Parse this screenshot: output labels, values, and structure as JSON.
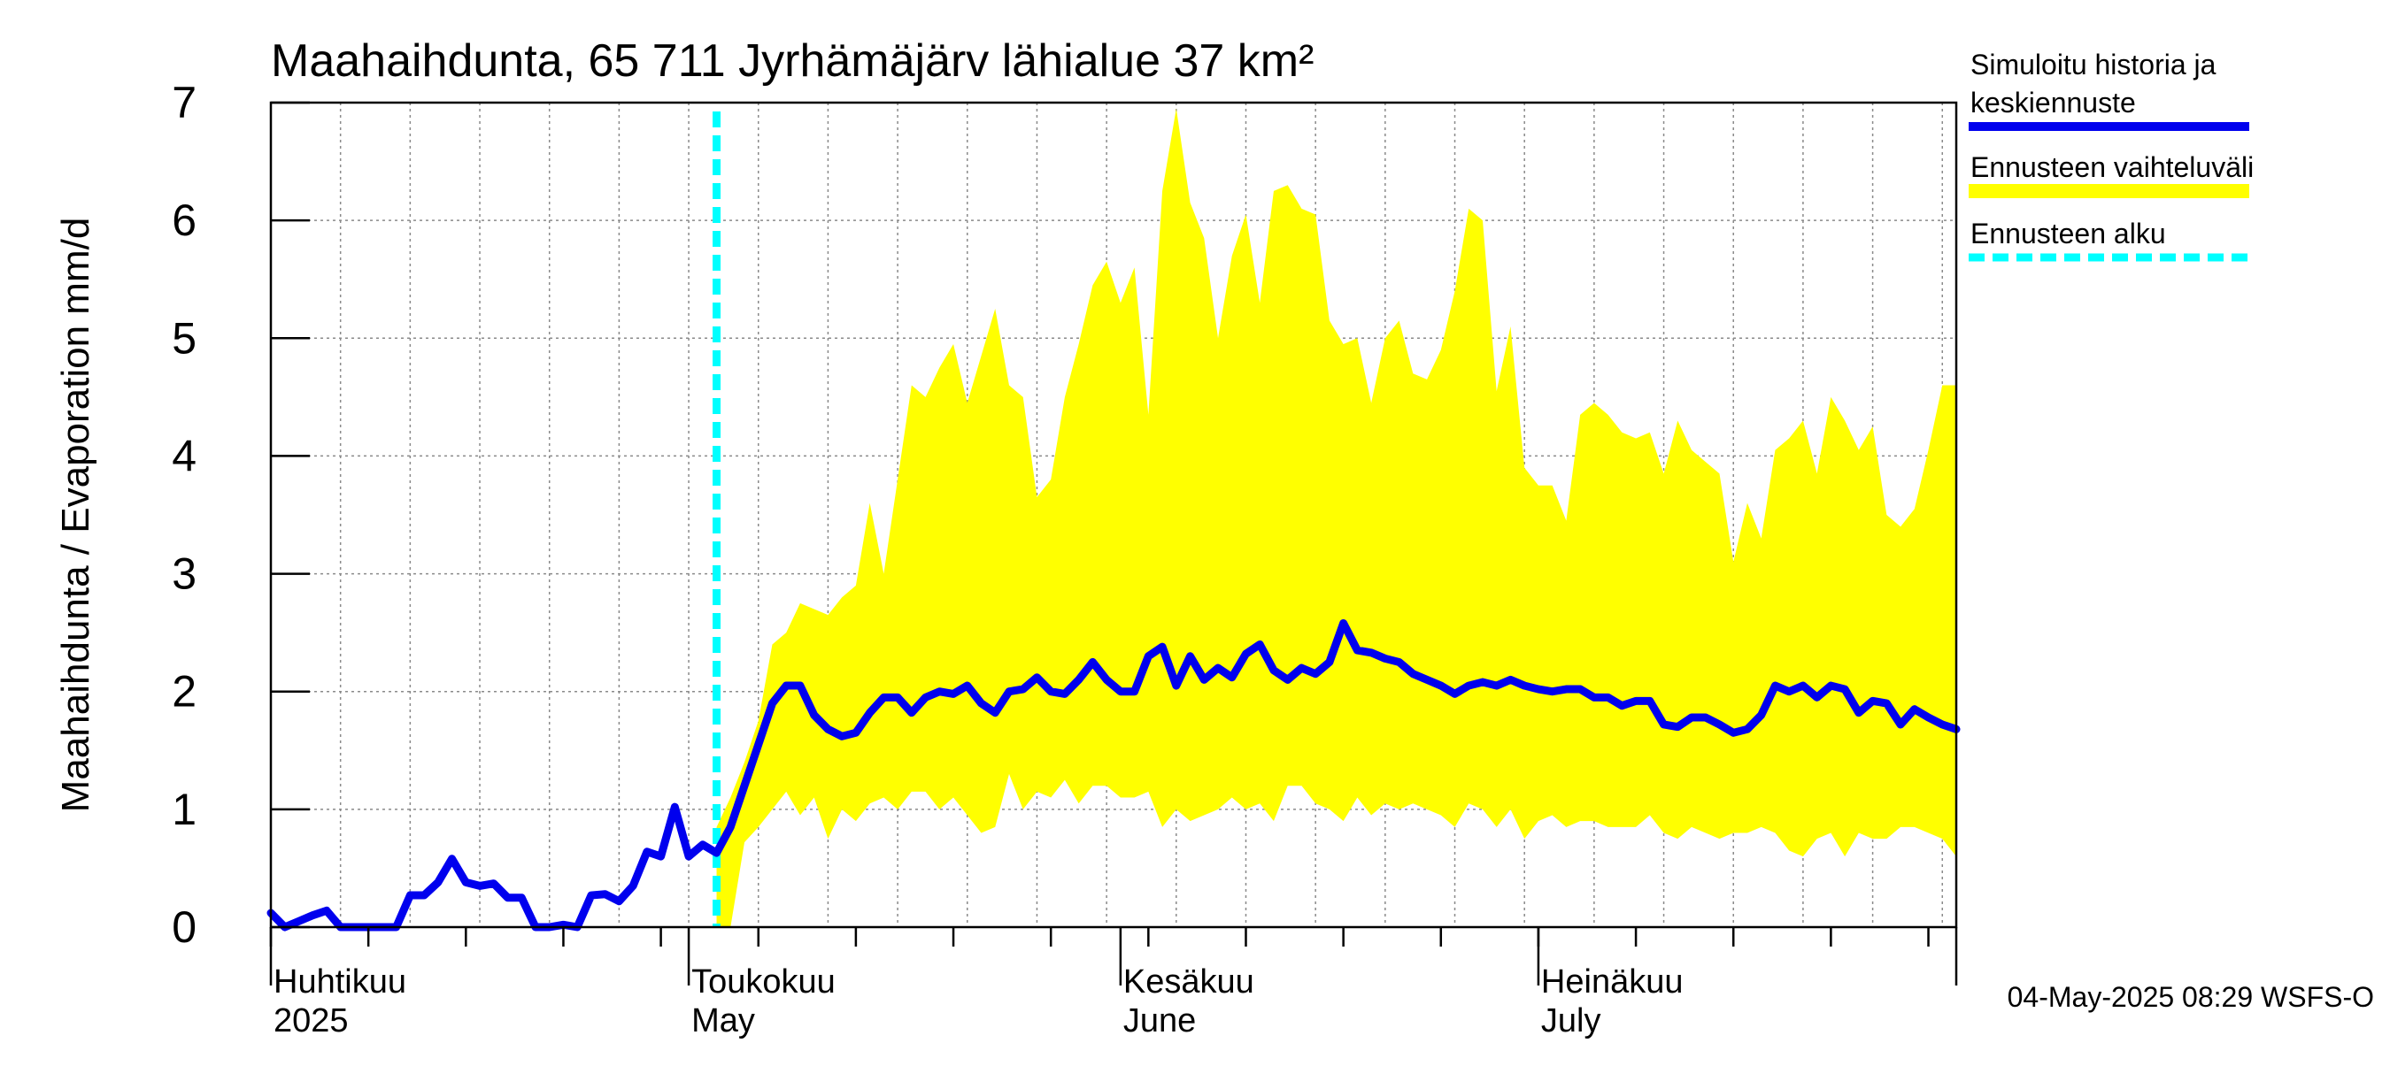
{
  "chart_data": {
    "type": "area",
    "title": "Maahaihdunta, 65 711 Jyrhämäjärv lähialue 37 km²",
    "ylabel": "Maahaihdunta / Evaporation   mm/d",
    "ylim": [
      0,
      7
    ],
    "yticks": [
      0,
      1,
      2,
      3,
      4,
      5,
      6,
      7
    ],
    "x_start_date": "2025-04-01",
    "x_end_date": "2025-07-31",
    "grid": true,
    "legend_placement": "right",
    "month_labels": [
      {
        "date": "2025-04-01",
        "fi": "Huhtikuu",
        "en": "2025"
      },
      {
        "date": "2025-05-01",
        "fi": "Toukokuu",
        "en": "May"
      },
      {
        "date": "2025-06-01",
        "fi": "Kesäkuu",
        "en": "June"
      },
      {
        "date": "2025-07-01",
        "fi": "Heinäkuu",
        "en": "July"
      }
    ],
    "forecast_start_date": "2025-05-03",
    "series": [
      {
        "name": "Simuloitu historia ja keskiennuste",
        "color": "#0000ee",
        "x": [
          0,
          1,
          2,
          3,
          4,
          5,
          6,
          7,
          8,
          9,
          10,
          11,
          12,
          13,
          14,
          15,
          16,
          17,
          18,
          19,
          20,
          21,
          22,
          23,
          24,
          25,
          26,
          27,
          28,
          29,
          30,
          31,
          32,
          33,
          34,
          35,
          36,
          37,
          38,
          39,
          40,
          41,
          42,
          43,
          44,
          45,
          46,
          47,
          48,
          49,
          50,
          51,
          52,
          53,
          54,
          55,
          56,
          57,
          58,
          59,
          60,
          61,
          62,
          63,
          64,
          65,
          66,
          67,
          68,
          69,
          70,
          71,
          72,
          73,
          74,
          75,
          76,
          77,
          78,
          79,
          80,
          81,
          82,
          83,
          84,
          85,
          86,
          87,
          88,
          89,
          90,
          91,
          92,
          93,
          94,
          95,
          96,
          97,
          98,
          99,
          100,
          101,
          102,
          103,
          104,
          105,
          106,
          107,
          108,
          109,
          110,
          111,
          112,
          113,
          114,
          115,
          116,
          117,
          118,
          119,
          120,
          121
        ],
        "values": [
          0.12,
          0.0,
          0.05,
          0.1,
          0.14,
          0.0,
          0.0,
          0.0,
          0.0,
          0.0,
          0.27,
          0.27,
          0.38,
          0.58,
          0.38,
          0.35,
          0.37,
          0.25,
          0.25,
          0.0,
          0.0,
          0.02,
          0.0,
          0.27,
          0.28,
          0.22,
          0.35,
          0.64,
          0.6,
          1.02,
          0.6,
          0.7,
          0.63,
          0.85,
          1.2,
          1.55,
          1.9,
          2.05,
          2.05,
          1.8,
          1.68,
          1.62,
          1.65,
          1.82,
          1.95,
          1.95,
          1.82,
          1.95,
          2.0,
          1.98,
          2.05,
          1.9,
          1.82,
          2.0,
          2.02,
          2.12,
          2.0,
          1.98,
          2.1,
          2.25,
          2.1,
          2.0,
          2.0,
          2.3,
          2.38,
          2.05,
          2.3,
          2.1,
          2.2,
          2.12,
          2.32,
          2.4,
          2.18,
          2.1,
          2.2,
          2.15,
          2.25,
          2.58,
          2.35,
          2.33,
          2.28,
          2.25,
          2.15,
          2.1,
          2.05,
          1.98,
          2.05,
          2.08,
          2.05,
          2.1,
          2.05,
          2.02,
          2.0,
          2.02,
          2.02,
          1.95,
          1.95,
          1.88,
          1.92,
          1.92,
          1.72,
          1.7,
          1.78,
          1.78,
          1.72,
          1.65,
          1.68,
          1.8,
          2.05,
          2.0,
          2.05,
          1.95,
          2.05,
          2.02,
          1.82,
          1.92,
          1.9,
          1.72,
          1.85,
          1.78,
          1.72,
          1.68
        ]
      },
      {
        "name": "Ennusteen vaihteluväli",
        "color": "#ffff00",
        "x": [
          32,
          33,
          34,
          35,
          36,
          37,
          38,
          39,
          40,
          41,
          42,
          43,
          44,
          45,
          46,
          47,
          48,
          49,
          50,
          51,
          52,
          53,
          54,
          55,
          56,
          57,
          58,
          59,
          60,
          61,
          62,
          63,
          64,
          65,
          66,
          67,
          68,
          69,
          70,
          71,
          72,
          73,
          74,
          75,
          76,
          77,
          78,
          79,
          80,
          81,
          82,
          83,
          84,
          85,
          86,
          87,
          88,
          89,
          90,
          91,
          92,
          93,
          94,
          95,
          96,
          97,
          98,
          99,
          100,
          101,
          102,
          103,
          104,
          105,
          106,
          107,
          108,
          109,
          110,
          111,
          112,
          113,
          114,
          115,
          116,
          117,
          118,
          119,
          120,
          121
        ],
        "upper": [
          0.85,
          1.1,
          1.4,
          1.75,
          2.4,
          2.5,
          2.75,
          2.7,
          2.65,
          2.8,
          2.9,
          3.6,
          3.0,
          3.8,
          4.6,
          4.5,
          4.75,
          4.95,
          4.45,
          4.85,
          5.25,
          4.6,
          4.5,
          3.65,
          3.8,
          4.5,
          4.95,
          5.45,
          5.65,
          5.3,
          5.6,
          4.35,
          6.25,
          6.95,
          6.15,
          5.85,
          5.0,
          5.7,
          6.05,
          5.3,
          6.25,
          6.3,
          6.1,
          6.05,
          5.15,
          4.95,
          5.0,
          4.45,
          5.0,
          5.15,
          4.7,
          4.65,
          4.9,
          5.4,
          6.1,
          6.0,
          4.55,
          5.1,
          3.9,
          3.75,
          3.75,
          3.45,
          4.35,
          4.45,
          4.35,
          4.2,
          4.15,
          4.2,
          3.85,
          4.3,
          4.05,
          3.95,
          3.85,
          3.1,
          3.6,
          3.3,
          4.05,
          4.15,
          4.3,
          3.85,
          4.5,
          4.3,
          4.05,
          4.25,
          3.5,
          3.4,
          3.55,
          4.05,
          4.6,
          4.6
        ],
        "lower": [
          0.0,
          0.0,
          0.72,
          0.85,
          1.0,
          1.15,
          0.95,
          1.1,
          0.75,
          1.0,
          0.9,
          1.05,
          1.1,
          1.0,
          1.15,
          1.15,
          1.0,
          1.1,
          0.95,
          0.8,
          0.85,
          1.3,
          1.0,
          1.15,
          1.1,
          1.25,
          1.05,
          1.2,
          1.2,
          1.1,
          1.1,
          1.15,
          0.85,
          1.0,
          0.9,
          0.95,
          1.0,
          1.1,
          1.0,
          1.05,
          0.9,
          1.2,
          1.2,
          1.05,
          1.0,
          0.9,
          1.1,
          0.95,
          1.05,
          1.0,
          1.05,
          1.0,
          0.95,
          0.85,
          1.05,
          1.0,
          0.85,
          1.0,
          0.75,
          0.9,
          0.95,
          0.85,
          0.9,
          0.9,
          0.85,
          0.85,
          0.85,
          0.95,
          0.8,
          0.75,
          0.85,
          0.8,
          0.75,
          0.8,
          0.8,
          0.85,
          0.8,
          0.65,
          0.6,
          0.75,
          0.8,
          0.6,
          0.8,
          0.75,
          0.75,
          0.85,
          0.85,
          0.8,
          0.75,
          0.6
        ]
      },
      {
        "name": "Ennusteen alku",
        "color": "#00ffff"
      }
    ]
  },
  "legend": {
    "items": [
      {
        "label_line1": "Simuloitu historia ja",
        "label_line2": "keskiennuste",
        "color": "#0000ee",
        "style": "solid"
      },
      {
        "label_line1": "Ennusteen vaihteluväli",
        "label_line2": "",
        "color": "#ffff00",
        "style": "solid"
      },
      {
        "label_line1": "Ennusteen alku",
        "label_line2": "",
        "color": "#00ffff",
        "style": "dashed"
      }
    ]
  },
  "footer": {
    "timestamp": "04-May-2025 08:29 WSFS-O"
  }
}
